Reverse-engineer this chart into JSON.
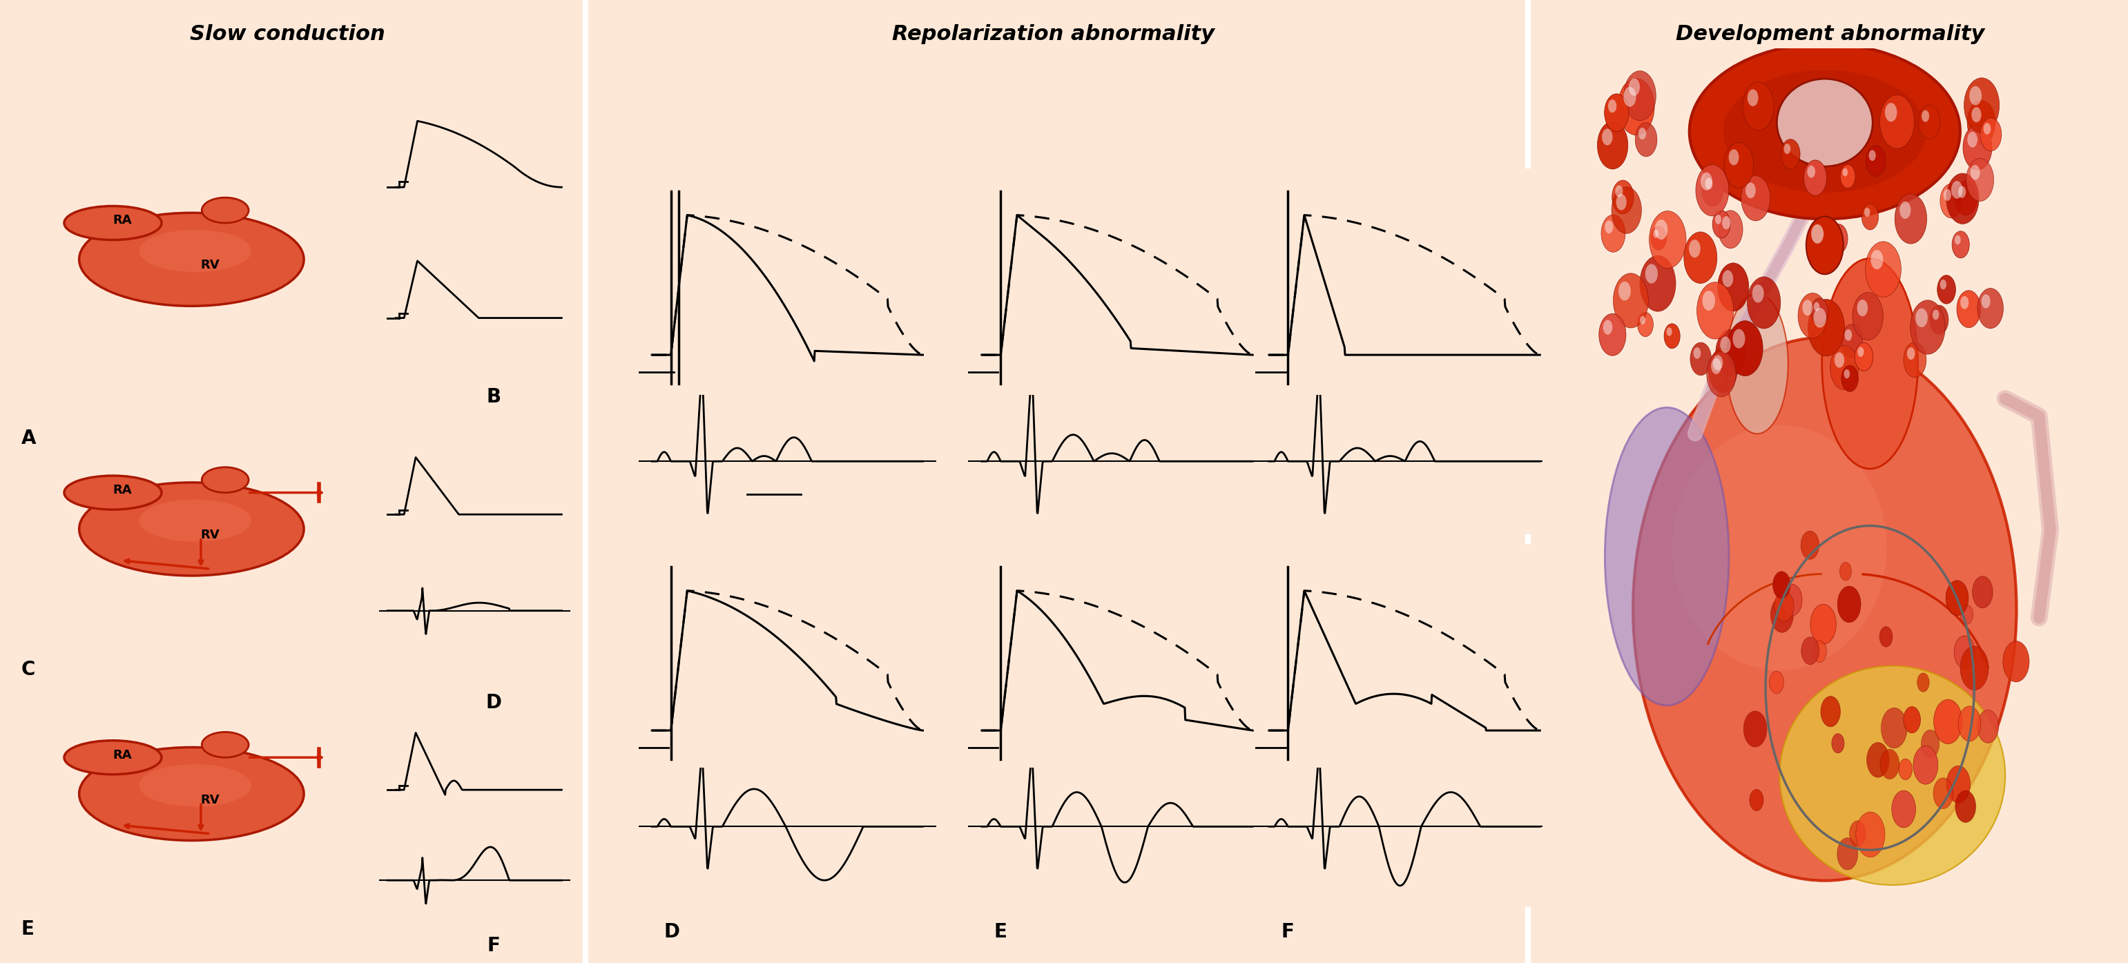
{
  "background_color": "#fde8d8",
  "section1_title": "Slow conduction",
  "section2_title": "Repolarization abnormality",
  "section3_title": "Development abnormality",
  "title_fontsize": 22,
  "label_fontsize": 20,
  "heart_color": "#cc2200",
  "heart_light": "#e05535",
  "heart_dark": "#aa1800"
}
